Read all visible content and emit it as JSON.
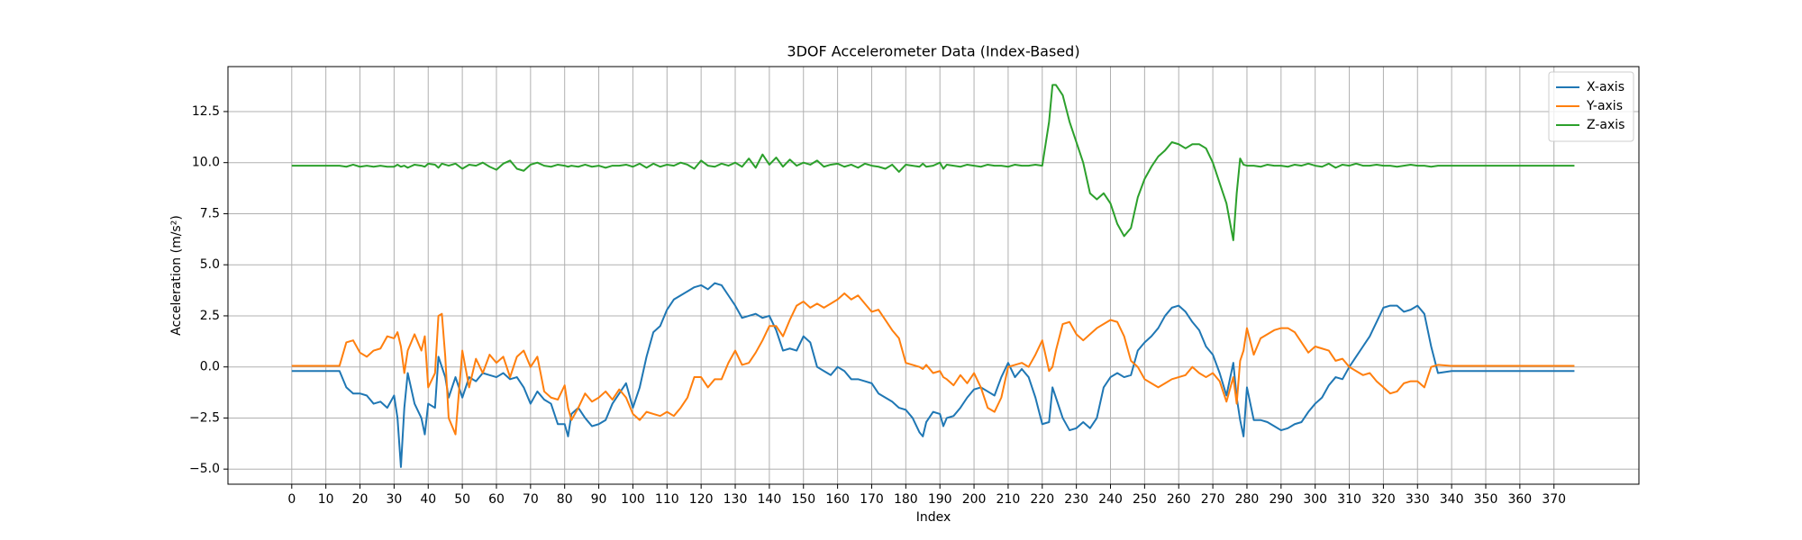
{
  "chart_data": {
    "type": "line",
    "title": "3DOF Accelerometer Data (Index-Based)",
    "x_label": "Index",
    "y_label": "Acceleration (m/s²)",
    "x": [
      0,
      4,
      8,
      12,
      14,
      16,
      18,
      20,
      22,
      24,
      26,
      28,
      30,
      31,
      32,
      33,
      34,
      36,
      38,
      39,
      40,
      42,
      43,
      44,
      45,
      46,
      48,
      50,
      52,
      54,
      56,
      58,
      60,
      62,
      64,
      66,
      68,
      70,
      72,
      74,
      76,
      78,
      80,
      81,
      82,
      84,
      86,
      88,
      90,
      92,
      94,
      96,
      98,
      100,
      102,
      104,
      106,
      108,
      110,
      112,
      114,
      116,
      118,
      120,
      122,
      124,
      126,
      128,
      130,
      132,
      134,
      136,
      138,
      140,
      142,
      144,
      146,
      148,
      150,
      152,
      154,
      156,
      158,
      160,
      162,
      164,
      166,
      168,
      170,
      172,
      174,
      176,
      178,
      180,
      182,
      184,
      185,
      186,
      188,
      190,
      191,
      192,
      194,
      196,
      198,
      200,
      202,
      204,
      206,
      208,
      210,
      212,
      214,
      216,
      218,
      220,
      222,
      223,
      224,
      226,
      228,
      230,
      232,
      234,
      236,
      238,
      240,
      242,
      244,
      246,
      248,
      250,
      252,
      254,
      256,
      258,
      260,
      262,
      264,
      266,
      268,
      270,
      272,
      274,
      276,
      277,
      278,
      279,
      280,
      282,
      284,
      286,
      288,
      290,
      292,
      294,
      296,
      298,
      300,
      302,
      304,
      306,
      308,
      310,
      312,
      314,
      316,
      318,
      320,
      322,
      324,
      326,
      328,
      330,
      332,
      334,
      336,
      340,
      344,
      348,
      352,
      356,
      360,
      364,
      368,
      372,
      376
    ],
    "series": [
      {
        "name": "X-axis",
        "color": "#1f77b4",
        "values": [
          -0.2,
          -0.2,
          -0.2,
          -0.2,
          -0.2,
          -1.0,
          -1.3,
          -1.3,
          -1.4,
          -1.8,
          -1.7,
          -2.0,
          -1.4,
          -2.5,
          -4.9,
          -2.0,
          -0.3,
          -1.8,
          -2.5,
          -3.3,
          -1.8,
          -2.0,
          0.5,
          0.0,
          -0.5,
          -1.5,
          -0.5,
          -1.5,
          -0.5,
          -0.7,
          -0.3,
          -0.4,
          -0.5,
          -0.3,
          -0.6,
          -0.5,
          -1.0,
          -1.8,
          -1.2,
          -1.6,
          -1.8,
          -2.8,
          -2.8,
          -3.4,
          -2.3,
          -2.0,
          -2.5,
          -2.9,
          -2.8,
          -2.6,
          -1.8,
          -1.3,
          -0.8,
          -2.0,
          -1.0,
          0.5,
          1.7,
          2.0,
          2.8,
          3.3,
          3.5,
          3.7,
          3.9,
          4.0,
          3.8,
          4.1,
          4.0,
          3.5,
          3.0,
          2.4,
          2.5,
          2.6,
          2.4,
          2.5,
          1.8,
          0.8,
          0.9,
          0.8,
          1.5,
          1.2,
          0.0,
          -0.2,
          -0.4,
          0.0,
          -0.2,
          -0.6,
          -0.6,
          -0.7,
          -0.8,
          -1.3,
          -1.5,
          -1.7,
          -2.0,
          -2.1,
          -2.5,
          -3.2,
          -3.4,
          -2.7,
          -2.2,
          -2.3,
          -2.9,
          -2.5,
          -2.4,
          -2.0,
          -1.5,
          -1.1,
          -1.0,
          -1.2,
          -1.4,
          -0.5,
          0.2,
          -0.5,
          -0.1,
          -0.5,
          -1.5,
          -2.8,
          -2.7,
          -1.0,
          -1.5,
          -2.5,
          -3.1,
          -3.0,
          -2.7,
          -3.0,
          -2.5,
          -1.0,
          -0.5,
          -0.3,
          -0.5,
          -0.4,
          0.8,
          1.2,
          1.5,
          1.9,
          2.5,
          2.9,
          3.0,
          2.7,
          2.2,
          1.8,
          1.0,
          0.6,
          -0.3,
          -1.4,
          0.2,
          -1.5,
          -2.6,
          -3.4,
          -1.0,
          -2.6,
          -2.6,
          -2.7,
          -2.9,
          -3.1,
          -3.0,
          -2.8,
          -2.7,
          -2.2,
          -1.8,
          -1.5,
          -0.9,
          -0.5,
          -0.6,
          0.0,
          0.5,
          1.0,
          1.5,
          2.2,
          2.9,
          3.0,
          3.0,
          2.7,
          2.8,
          3.0,
          2.6,
          1.0,
          -0.3,
          -0.2,
          -0.2,
          -0.2,
          -0.2,
          -0.2,
          -0.2,
          -0.2,
          -0.2,
          -0.2,
          -0.2
        ]
      },
      {
        "name": "Y-axis",
        "color": "#ff7f0e",
        "values": [
          0.05,
          0.05,
          0.05,
          0.05,
          0.05,
          1.2,
          1.3,
          0.7,
          0.5,
          0.8,
          0.9,
          1.5,
          1.4,
          1.7,
          1.0,
          -0.3,
          0.8,
          1.6,
          0.8,
          1.5,
          -1.0,
          -0.3,
          2.5,
          2.6,
          0.5,
          -2.5,
          -3.3,
          0.8,
          -1.0,
          0.4,
          -0.3,
          0.6,
          0.2,
          0.5,
          -0.5,
          0.5,
          0.8,
          0.0,
          0.5,
          -1.2,
          -1.5,
          -1.6,
          -0.9,
          -2.0,
          -2.6,
          -2.0,
          -1.3,
          -1.7,
          -1.5,
          -1.2,
          -1.6,
          -1.1,
          -1.5,
          -2.3,
          -2.6,
          -2.2,
          -2.3,
          -2.4,
          -2.2,
          -2.4,
          -2.0,
          -1.5,
          -0.5,
          -0.5,
          -1.0,
          -0.6,
          -0.6,
          0.2,
          0.8,
          0.1,
          0.2,
          0.7,
          1.3,
          2.0,
          2.0,
          1.5,
          2.3,
          3.0,
          3.2,
          2.9,
          3.1,
          2.9,
          3.1,
          3.3,
          3.6,
          3.3,
          3.5,
          3.1,
          2.7,
          2.8,
          2.3,
          1.8,
          1.4,
          0.2,
          0.1,
          0.0,
          -0.1,
          0.1,
          -0.3,
          -0.2,
          -0.5,
          -0.6,
          -0.9,
          -0.4,
          -0.8,
          -0.3,
          -1.0,
          -2.0,
          -2.2,
          -1.5,
          0.0,
          0.1,
          0.2,
          0.0,
          0.6,
          1.3,
          -0.2,
          0.0,
          0.8,
          2.1,
          2.2,
          1.6,
          1.3,
          1.6,
          1.9,
          2.1,
          2.3,
          2.2,
          1.5,
          0.3,
          0.0,
          -0.6,
          -0.8,
          -1.0,
          -0.8,
          -0.6,
          -0.5,
          -0.4,
          0.0,
          -0.3,
          -0.5,
          -0.3,
          -0.7,
          -1.7,
          -0.5,
          -1.8,
          0.3,
          0.8,
          1.9,
          0.6,
          1.4,
          1.6,
          1.8,
          1.9,
          1.9,
          1.7,
          1.2,
          0.7,
          1.0,
          0.9,
          0.8,
          0.3,
          0.4,
          0.0,
          -0.2,
          -0.4,
          -0.3,
          -0.7,
          -1.0,
          -1.3,
          -1.2,
          -0.8,
          -0.7,
          -0.7,
          -1.0,
          0.0,
          0.1,
          0.05,
          0.05,
          0.05,
          0.05,
          0.05,
          0.05,
          0.05,
          0.05,
          0.05,
          0.05
        ]
      },
      {
        "name": "Z-axis",
        "color": "#2ca02c",
        "values": [
          9.85,
          9.85,
          9.85,
          9.85,
          9.85,
          9.8,
          9.9,
          9.8,
          9.85,
          9.8,
          9.85,
          9.8,
          9.8,
          9.9,
          9.8,
          9.85,
          9.75,
          9.9,
          9.85,
          9.8,
          9.95,
          9.9,
          9.75,
          9.95,
          9.9,
          9.85,
          9.95,
          9.7,
          9.9,
          9.85,
          10.0,
          9.8,
          9.65,
          9.95,
          10.1,
          9.7,
          9.6,
          9.9,
          10.0,
          9.85,
          9.8,
          9.9,
          9.85,
          9.8,
          9.85,
          9.8,
          9.9,
          9.8,
          9.85,
          9.75,
          9.85,
          9.85,
          9.9,
          9.8,
          9.95,
          9.75,
          9.95,
          9.8,
          9.9,
          9.85,
          10.0,
          9.9,
          9.7,
          10.1,
          9.85,
          9.8,
          9.95,
          9.85,
          10.0,
          9.8,
          10.2,
          9.75,
          10.4,
          9.9,
          10.25,
          9.8,
          10.15,
          9.85,
          10.0,
          9.9,
          10.1,
          9.8,
          9.9,
          9.95,
          9.8,
          9.9,
          9.75,
          9.95,
          9.85,
          9.8,
          9.7,
          9.9,
          9.55,
          9.9,
          9.85,
          9.8,
          9.95,
          9.8,
          9.85,
          10.0,
          9.7,
          9.9,
          9.85,
          9.8,
          9.9,
          9.85,
          9.8,
          9.9,
          9.85,
          9.85,
          9.8,
          9.9,
          9.85,
          9.85,
          9.9,
          9.85,
          12.0,
          13.8,
          13.8,
          13.3,
          12.0,
          11.0,
          10.0,
          8.5,
          8.2,
          8.5,
          8.0,
          7.0,
          6.4,
          6.8,
          8.3,
          9.2,
          9.8,
          10.3,
          10.6,
          11.0,
          10.9,
          10.7,
          10.9,
          10.9,
          10.7,
          10.0,
          9.0,
          8.0,
          6.2,
          8.5,
          10.2,
          9.9,
          9.85,
          9.85,
          9.8,
          9.9,
          9.85,
          9.85,
          9.8,
          9.9,
          9.85,
          9.95,
          9.85,
          9.8,
          9.95,
          9.75,
          9.9,
          9.85,
          9.95,
          9.85,
          9.85,
          9.9,
          9.85,
          9.85,
          9.8,
          9.85,
          9.9,
          9.85,
          9.85,
          9.8,
          9.85,
          9.85,
          9.85,
          9.85,
          9.85,
          9.85,
          9.85,
          9.85,
          9.85,
          9.85,
          9.85
        ]
      }
    ],
    "xlim": [
      -18.7,
      394.9
    ],
    "ylim": [
      -5.74,
      14.7
    ],
    "xticks": [
      0,
      10,
      20,
      30,
      40,
      50,
      60,
      70,
      80,
      90,
      100,
      110,
      120,
      130,
      140,
      150,
      160,
      170,
      180,
      190,
      200,
      210,
      220,
      230,
      240,
      250,
      260,
      270,
      280,
      290,
      300,
      310,
      320,
      330,
      340,
      350,
      360,
      370
    ],
    "yticks": [
      {
        "value": -5,
        "label": "−5.0"
      },
      {
        "value": -2.5,
        "label": "−2.5"
      },
      {
        "value": 0,
        "label": "0.0"
      },
      {
        "value": 2.5,
        "label": "2.5"
      },
      {
        "value": 5,
        "label": "5.0"
      },
      {
        "value": 7.5,
        "label": "7.5"
      },
      {
        "value": 10,
        "label": "10.0"
      },
      12.5
    ],
    "grid": true,
    "legend": "upper right"
  }
}
